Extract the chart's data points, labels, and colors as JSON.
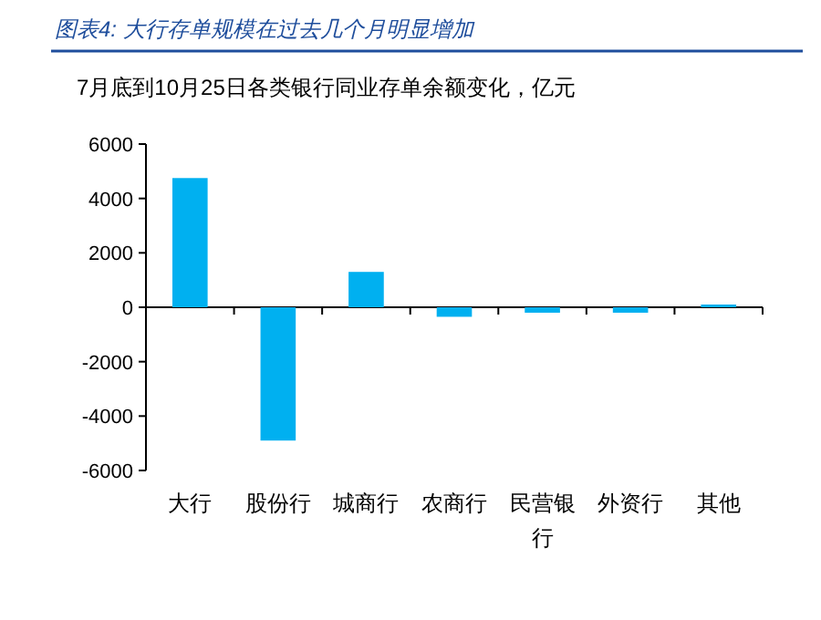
{
  "chart_data": {
    "type": "bar",
    "title": "图表4: 大行存单规模在过去几个月明显增加",
    "subtitle": "7月底到10月25日各类银行同业存单余额变化，亿元",
    "categories": [
      "大行",
      "股份行",
      "城商行",
      "农商行",
      "民营银行",
      "外资行",
      "其他"
    ],
    "values": [
      4750,
      -4900,
      1300,
      -350,
      -200,
      -200,
      100
    ],
    "color": "#00b0f0",
    "ylim": [
      -6000,
      6000
    ],
    "yticks": [
      -6000,
      -4000,
      -2000,
      0,
      2000,
      4000,
      6000
    ]
  }
}
